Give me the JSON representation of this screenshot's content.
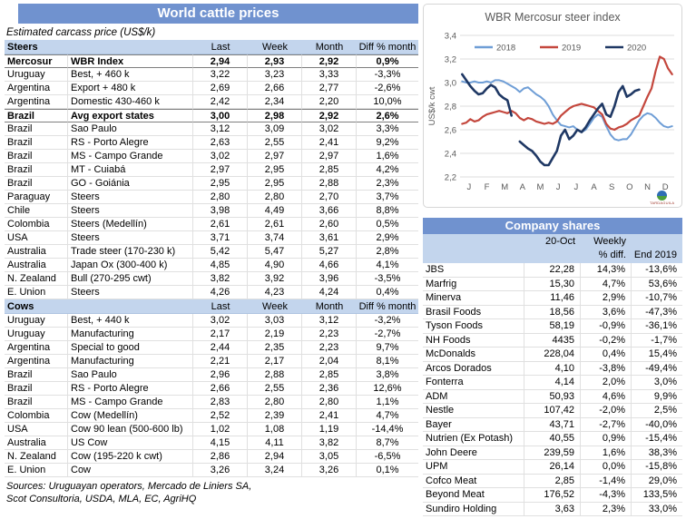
{
  "colors": {
    "header_blue": "#7092cf",
    "band_blue": "#c3d5ed"
  },
  "left_panel": {
    "title": "World cattle prices",
    "subtitle": "Estimated carcass price (US$/k)",
    "col_headers": [
      "Last",
      "Week",
      "Month",
      "Diff % month"
    ],
    "sections": [
      {
        "label": "Steers",
        "rows": [
          {
            "country": "Mercosur",
            "product": "WBR Index",
            "last": "2,94",
            "week": "2,93",
            "month": "2,92",
            "diff": "0,9%",
            "bold": true
          },
          {
            "country": "Uruguay",
            "product": "Best, + 460 k",
            "last": "3,22",
            "week": "3,23",
            "month": "3,33",
            "diff": "-3,3%",
            "bold": false
          },
          {
            "country": "Argentina",
            "product": "Export + 480 k",
            "last": "2,69",
            "week": "2,66",
            "month": "2,77",
            "diff": "-2,6%",
            "bold": false
          },
          {
            "country": "Argentina",
            "product": "Domestic 430-460 k",
            "last": "2,42",
            "week": "2,34",
            "month": "2,20",
            "diff": "10,0%",
            "bold": false
          },
          {
            "country": "Brazil",
            "product": "Avg export states",
            "last": "3,00",
            "week": "2,98",
            "month": "2,92",
            "diff": "2,6%",
            "bold": true
          },
          {
            "country": "Brazil",
            "product": "Sao Paulo",
            "last": "3,12",
            "week": "3,09",
            "month": "3,02",
            "diff": "3,3%",
            "bold": false
          },
          {
            "country": "Brazil",
            "product": "RS - Porto Alegre",
            "last": "2,63",
            "week": "2,55",
            "month": "2,41",
            "diff": "9,2%",
            "bold": false
          },
          {
            "country": "Brazil",
            "product": "MS - Campo Grande",
            "last": "3,02",
            "week": "2,97",
            "month": "2,97",
            "diff": "1,6%",
            "bold": false
          },
          {
            "country": "Brazil",
            "product": "MT - Cuiabá",
            "last": "2,97",
            "week": "2,95",
            "month": "2,85",
            "diff": "4,2%",
            "bold": false
          },
          {
            "country": "Brazil",
            "product": "GO - Goiánia",
            "last": "2,95",
            "week": "2,95",
            "month": "2,88",
            "diff": "2,3%",
            "bold": false
          },
          {
            "country": "Paraguay",
            "product": "Steers",
            "last": "2,80",
            "week": "2,80",
            "month": "2,70",
            "diff": "3,7%",
            "bold": false
          },
          {
            "country": "Chile",
            "product": "Steers",
            "last": "3,98",
            "week": "4,49",
            "month": "3,66",
            "diff": "8,8%",
            "bold": false
          },
          {
            "country": "Colombia",
            "product": "Steers (Medellín)",
            "last": "2,61",
            "week": "2,61",
            "month": "2,60",
            "diff": "0,5%",
            "bold": false
          },
          {
            "country": "USA",
            "product": "Steers",
            "last": "3,71",
            "week": "3,74",
            "month": "3,61",
            "diff": "2,9%",
            "bold": false
          },
          {
            "country": "Australia",
            "product": "Trade steer (170-230 k)",
            "last": "5,42",
            "week": "5,47",
            "month": "5,27",
            "diff": "2,8%",
            "bold": false
          },
          {
            "country": "Australia",
            "product": "Japan Ox (300-400 k)",
            "last": "4,85",
            "week": "4,90",
            "month": "4,66",
            "diff": "4,1%",
            "bold": false
          },
          {
            "country": "N. Zealand",
            "product": "Bull (270-295 cwt)",
            "last": "3,82",
            "week": "3,92",
            "month": "3,96",
            "diff": "-3,5%",
            "bold": false
          },
          {
            "country": "E. Union",
            "product": "Steers",
            "last": "4,26",
            "week": "4,23",
            "month": "4,24",
            "diff": "0,4%",
            "bold": false
          }
        ]
      },
      {
        "label": "Cows",
        "rows": [
          {
            "country": "Uruguay",
            "product": "Best, + 440 k",
            "last": "3,02",
            "week": "3,03",
            "month": "3,12",
            "diff": "-3,2%",
            "bold": false
          },
          {
            "country": "Uruguay",
            "product": "Manufacturing",
            "last": "2,17",
            "week": "2,19",
            "month": "2,23",
            "diff": "-2,7%",
            "bold": false
          },
          {
            "country": "Argentina",
            "product": "Special to good",
            "last": "2,44",
            "week": "2,35",
            "month": "2,23",
            "diff": "9,7%",
            "bold": false
          },
          {
            "country": "Argentina",
            "product": "Manufacturing",
            "last": "2,21",
            "week": "2,17",
            "month": "2,04",
            "diff": "8,1%",
            "bold": false
          },
          {
            "country": "Brazil",
            "product": "Sao Paulo",
            "last": "2,96",
            "week": "2,88",
            "month": "2,85",
            "diff": "3,8%",
            "bold": false
          },
          {
            "country": "Brazil",
            "product": "RS - Porto Alegre",
            "last": "2,66",
            "week": "2,55",
            "month": "2,36",
            "diff": "12,6%",
            "bold": false
          },
          {
            "country": "Brazil",
            "product": "MS - Campo Grande",
            "last": "2,83",
            "week": "2,80",
            "month": "2,80",
            "diff": "1,1%",
            "bold": false
          },
          {
            "country": "Colombia",
            "product": "Cow (Medellín)",
            "last": "2,52",
            "week": "2,39",
            "month": "2,41",
            "diff": "4,7%",
            "bold": false
          },
          {
            "country": "USA",
            "product": "Cow 90 lean (500-600 lb)",
            "last": "1,02",
            "week": "1,08",
            "month": "1,19",
            "diff": "-14,4%",
            "bold": false
          },
          {
            "country": "Australia",
            "product": "US Cow",
            "last": "4,15",
            "week": "4,11",
            "month": "3,82",
            "diff": "8,7%",
            "bold": false
          },
          {
            "country": "N. Zealand",
            "product": "Cow (195-220 k cwt)",
            "last": "2,86",
            "week": "2,94",
            "month": "3,05",
            "diff": "-6,5%",
            "bold": false
          },
          {
            "country": "E. Union",
            "product": "Cow",
            "last": "3,26",
            "week": "3,24",
            "month": "3,26",
            "diff": "0,1%",
            "bold": false
          }
        ]
      }
    ],
    "sources": [
      "Sources: Uruguayan operators, Mercado de Liniers SA,",
      "Scot Consultoria, USDA, MLA, EC, AgriHQ"
    ]
  },
  "chart_data": {
    "type": "line",
    "title": "WBR Mercosur steer index",
    "ylabel": "US$/k cwt",
    "ylim": [
      2.2,
      3.4
    ],
    "ytick_step": 0.2,
    "y_tick_labels": [
      "3,4",
      "3,2",
      "3,0",
      "2,8",
      "2,6",
      "2,4",
      "2,2"
    ],
    "x_tick_labels": [
      "J",
      "F",
      "M",
      "A",
      "M",
      "J",
      "J",
      "A",
      "S",
      "O",
      "N",
      "D"
    ],
    "grid": true,
    "legend_position": "top",
    "weeks_per_year": 52,
    "series": [
      {
        "name": "2018",
        "color": "#6f9ed6",
        "width": 2,
        "values": [
          3.01,
          3.0,
          3.0,
          3.01,
          3.0,
          3.0,
          3.01,
          3.0,
          3.02,
          3.02,
          3.01,
          2.99,
          2.97,
          2.95,
          2.92,
          2.95,
          2.96,
          2.93,
          2.9,
          2.88,
          2.85,
          2.8,
          2.73,
          2.68,
          2.64,
          2.63,
          2.62,
          2.63,
          2.6,
          2.58,
          2.6,
          2.65,
          2.7,
          2.73,
          2.71,
          2.63,
          2.56,
          2.52,
          2.51,
          2.52,
          2.52,
          2.56,
          2.62,
          2.68,
          2.72,
          2.74,
          2.73,
          2.7,
          2.66,
          2.63,
          2.62,
          2.63
        ]
      },
      {
        "name": "2019",
        "color": "#c4473d",
        "width": 2.2,
        "values": [
          2.65,
          2.66,
          2.69,
          2.67,
          2.68,
          2.71,
          2.73,
          2.74,
          2.75,
          2.76,
          2.75,
          2.74,
          2.76,
          2.74,
          2.7,
          2.68,
          2.7,
          2.69,
          2.67,
          2.66,
          2.65,
          2.66,
          2.65,
          2.67,
          2.72,
          2.75,
          2.78,
          2.8,
          2.81,
          2.82,
          2.81,
          2.8,
          2.79,
          2.76,
          2.73,
          2.65,
          2.61,
          2.6,
          2.62,
          2.63,
          2.65,
          2.68,
          2.7,
          2.72,
          2.8,
          2.88,
          2.95,
          3.1,
          3.22,
          3.2,
          3.12,
          3.07
        ]
      },
      {
        "name": "2020",
        "color": "#1f3864",
        "width": 2.6,
        "values": [
          3.07,
          3.02,
          2.97,
          2.93,
          2.9,
          2.91,
          2.95,
          2.98,
          2.96,
          2.9,
          2.87,
          2.85,
          2.72,
          null,
          2.5,
          2.47,
          2.44,
          2.42,
          2.38,
          2.33,
          2.3,
          2.3,
          2.36,
          2.42,
          2.55,
          2.6,
          2.52,
          2.55,
          2.6,
          2.58,
          2.62,
          2.68,
          2.73,
          2.78,
          2.82,
          2.73,
          2.71,
          2.8,
          2.92,
          2.97,
          2.88,
          2.9,
          2.93,
          2.94
        ]
      }
    ]
  },
  "company_shares": {
    "title": "Company shares",
    "headers": {
      "date": "20-Oct",
      "weekly1": "Weekly",
      "weekly2": "% diff.",
      "end": "End 2019"
    },
    "rows": [
      {
        "name": "JBS",
        "price": "22,28",
        "weekly": "14,3%",
        "end": "-13,6%"
      },
      {
        "name": "Marfrig",
        "price": "15,30",
        "weekly": "4,7%",
        "end": "53,6%"
      },
      {
        "name": "Minerva",
        "price": "11,46",
        "weekly": "2,9%",
        "end": "-10,7%"
      },
      {
        "name": "Brasil Foods",
        "price": "18,56",
        "weekly": "3,6%",
        "end": "-47,3%"
      },
      {
        "name": "Tyson Foods",
        "price": "58,19",
        "weekly": "-0,9%",
        "end": "-36,1%"
      },
      {
        "name": "NH Foods",
        "price": "4435",
        "weekly": "-0,2%",
        "end": "-1,7%"
      },
      {
        "name": "McDonalds",
        "price": "228,04",
        "weekly": "0,4%",
        "end": "15,4%"
      },
      {
        "name": "Arcos Dorados",
        "price": "4,10",
        "weekly": "-3,8%",
        "end": "-49,4%"
      },
      {
        "name": "Fonterra",
        "price": "4,14",
        "weekly": "2,0%",
        "end": "3,0%"
      },
      {
        "name": "ADM",
        "price": "50,93",
        "weekly": "4,6%",
        "end": "9,9%"
      },
      {
        "name": "Nestle",
        "price": "107,42",
        "weekly": "-2,0%",
        "end": "2,5%"
      },
      {
        "name": "Bayer",
        "price": "43,71",
        "weekly": "-2,7%",
        "end": "-40,0%"
      },
      {
        "name": "Nutrien (Ex Potash)",
        "price": "40,55",
        "weekly": "0,9%",
        "end": "-15,4%"
      },
      {
        "name": "John Deere",
        "price": "239,59",
        "weekly": "1,6%",
        "end": "38,3%"
      },
      {
        "name": "UPM",
        "price": "26,14",
        "weekly": "0,0%",
        "end": "-15,8%"
      },
      {
        "name": "Cofco Meat",
        "price": "2,85",
        "weekly": "-1,4%",
        "end": "29,0%"
      },
      {
        "name": "Beyond Meat",
        "price": "176,52",
        "weekly": "-4,3%",
        "end": "133,5%"
      },
      {
        "name": "Sundiro Holding",
        "price": "3,63",
        "weekly": "2,3%",
        "end": "33,0%"
      }
    ]
  },
  "logo_text": "TARDAGUILA"
}
